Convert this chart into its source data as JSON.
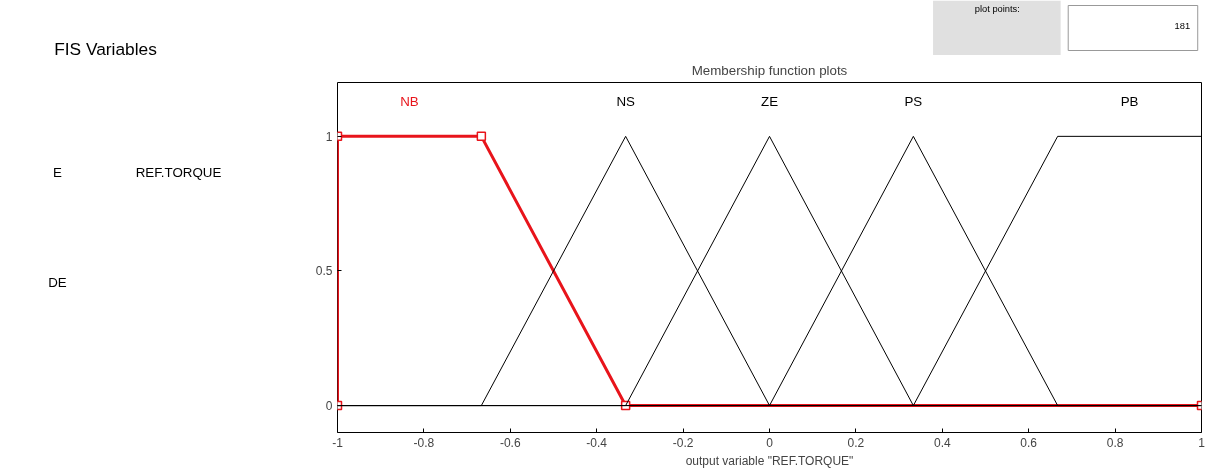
{
  "chart_data": {
    "type": "line",
    "title": "Membership function plots",
    "xlabel": "output variable \"REF.TORQUE\"",
    "xlim": [
      -1,
      1
    ],
    "ylim": [
      -0.1,
      1.2
    ],
    "xticks": [
      -1,
      -0.8,
      -0.6,
      -0.4,
      -0.2,
      0,
      0.2,
      0.4,
      0.6,
      0.8,
      1
    ],
    "yticks": [
      0,
      0.5,
      1
    ],
    "grid": false,
    "legend": false,
    "line_style": "solid",
    "series": [
      {
        "name": "NB",
        "color": "#e8141b",
        "marker": "square",
        "x": [
          -1,
          -1,
          -0.667,
          -0.333,
          1
        ],
        "values": [
          0,
          1,
          1,
          0,
          0
        ]
      },
      {
        "name": "NS",
        "color": "#000000",
        "marker": "none",
        "x": [
          -1,
          -0.667,
          -0.333,
          0,
          1
        ],
        "values": [
          0,
          0,
          1,
          0,
          0
        ]
      },
      {
        "name": "ZE",
        "color": "#000000",
        "marker": "none",
        "x": [
          -1,
          -0.333,
          0,
          0.333,
          1
        ],
        "values": [
          0,
          0,
          1,
          0,
          0
        ]
      },
      {
        "name": "PS",
        "color": "#000000",
        "marker": "none",
        "x": [
          -1,
          0,
          0.333,
          0.667,
          1
        ],
        "values": [
          0,
          0,
          1,
          0,
          0
        ]
      },
      {
        "name": "PB",
        "color": "#000000",
        "marker": "none",
        "x": [
          -1,
          0.333,
          0.667,
          1
        ],
        "values": [
          0,
          0,
          1,
          1
        ]
      }
    ],
    "annotations": [
      "FIS Variables",
      "E",
      "REF.TORQUE",
      "DE",
      "plot points:",
      "181"
    ]
  }
}
